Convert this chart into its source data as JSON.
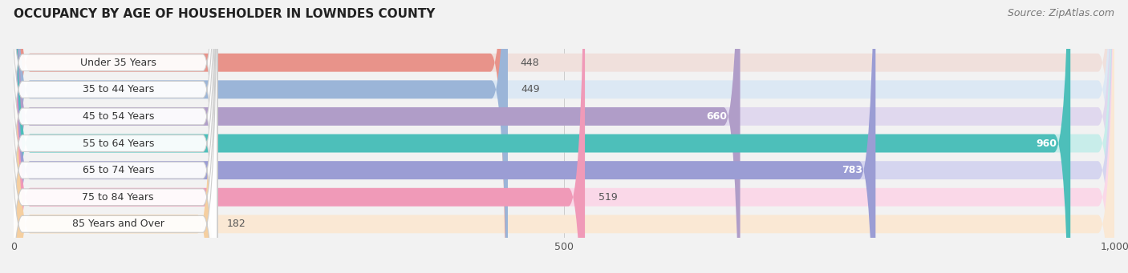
{
  "title": "OCCUPANCY BY AGE OF HOUSEHOLDER IN LOWNDES COUNTY",
  "source": "Source: ZipAtlas.com",
  "categories": [
    "Under 35 Years",
    "35 to 44 Years",
    "45 to 54 Years",
    "55 to 64 Years",
    "65 to 74 Years",
    "75 to 84 Years",
    "85 Years and Over"
  ],
  "values": [
    448,
    449,
    660,
    960,
    783,
    519,
    182
  ],
  "bar_colors": [
    "#E8938A",
    "#9BB5D8",
    "#B09DC8",
    "#4DBFBA",
    "#9B9DD4",
    "#F09AB8",
    "#F5CFA0"
  ],
  "bar_bg_colors": [
    "#F0E0DC",
    "#DCE8F4",
    "#E0D8EE",
    "#C8EDEA",
    "#D5D5EF",
    "#FAD8E8",
    "#FAE8D4"
  ],
  "xlim": [
    0,
    1000
  ],
  "xticks": [
    0,
    500,
    1000
  ],
  "xtick_labels": [
    "0",
    "500",
    "1,000"
  ],
  "background_color": "#f2f2f2",
  "row_bg_color": "#e8e8e8",
  "title_fontsize": 11,
  "source_fontsize": 9,
  "label_fontsize": 9,
  "value_fontsize": 9
}
